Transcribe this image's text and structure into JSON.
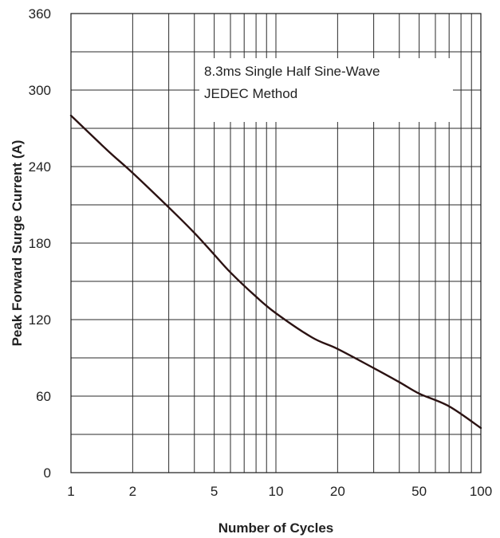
{
  "chart_data": {
    "type": "line",
    "xlabel": "Number of Cycles",
    "ylabel": "Peak  Forward Surge Current (A)",
    "x_scale": "log",
    "xlim": [
      1,
      100
    ],
    "ylim": [
      0,
      360
    ],
    "x_tick_labels": [
      "1",
      "2",
      "5",
      "10",
      "20",
      "50",
      "100"
    ],
    "x_tick_values": [
      1,
      2,
      5,
      10,
      20,
      50,
      100
    ],
    "y_tick_labels": [
      "0",
      "60",
      "120",
      "180",
      "240",
      "300",
      "360"
    ],
    "y_tick_values": [
      0,
      60,
      120,
      180,
      240,
      300,
      360
    ],
    "grid": true,
    "annotation": [
      "8.3ms Single Half Sine-Wave",
      "JEDEC Method"
    ],
    "series": [
      {
        "x": [
          1,
          1.5,
          2,
          3,
          4,
          5,
          6,
          8,
          10,
          15,
          20,
          30,
          40,
          50,
          70,
          100
        ],
        "y": [
          280,
          253,
          235,
          208,
          188,
          171,
          157,
          138,
          125,
          106,
          97,
          82,
          71,
          62,
          52,
          35
        ]
      }
    ],
    "line_color": "#2b1212"
  }
}
